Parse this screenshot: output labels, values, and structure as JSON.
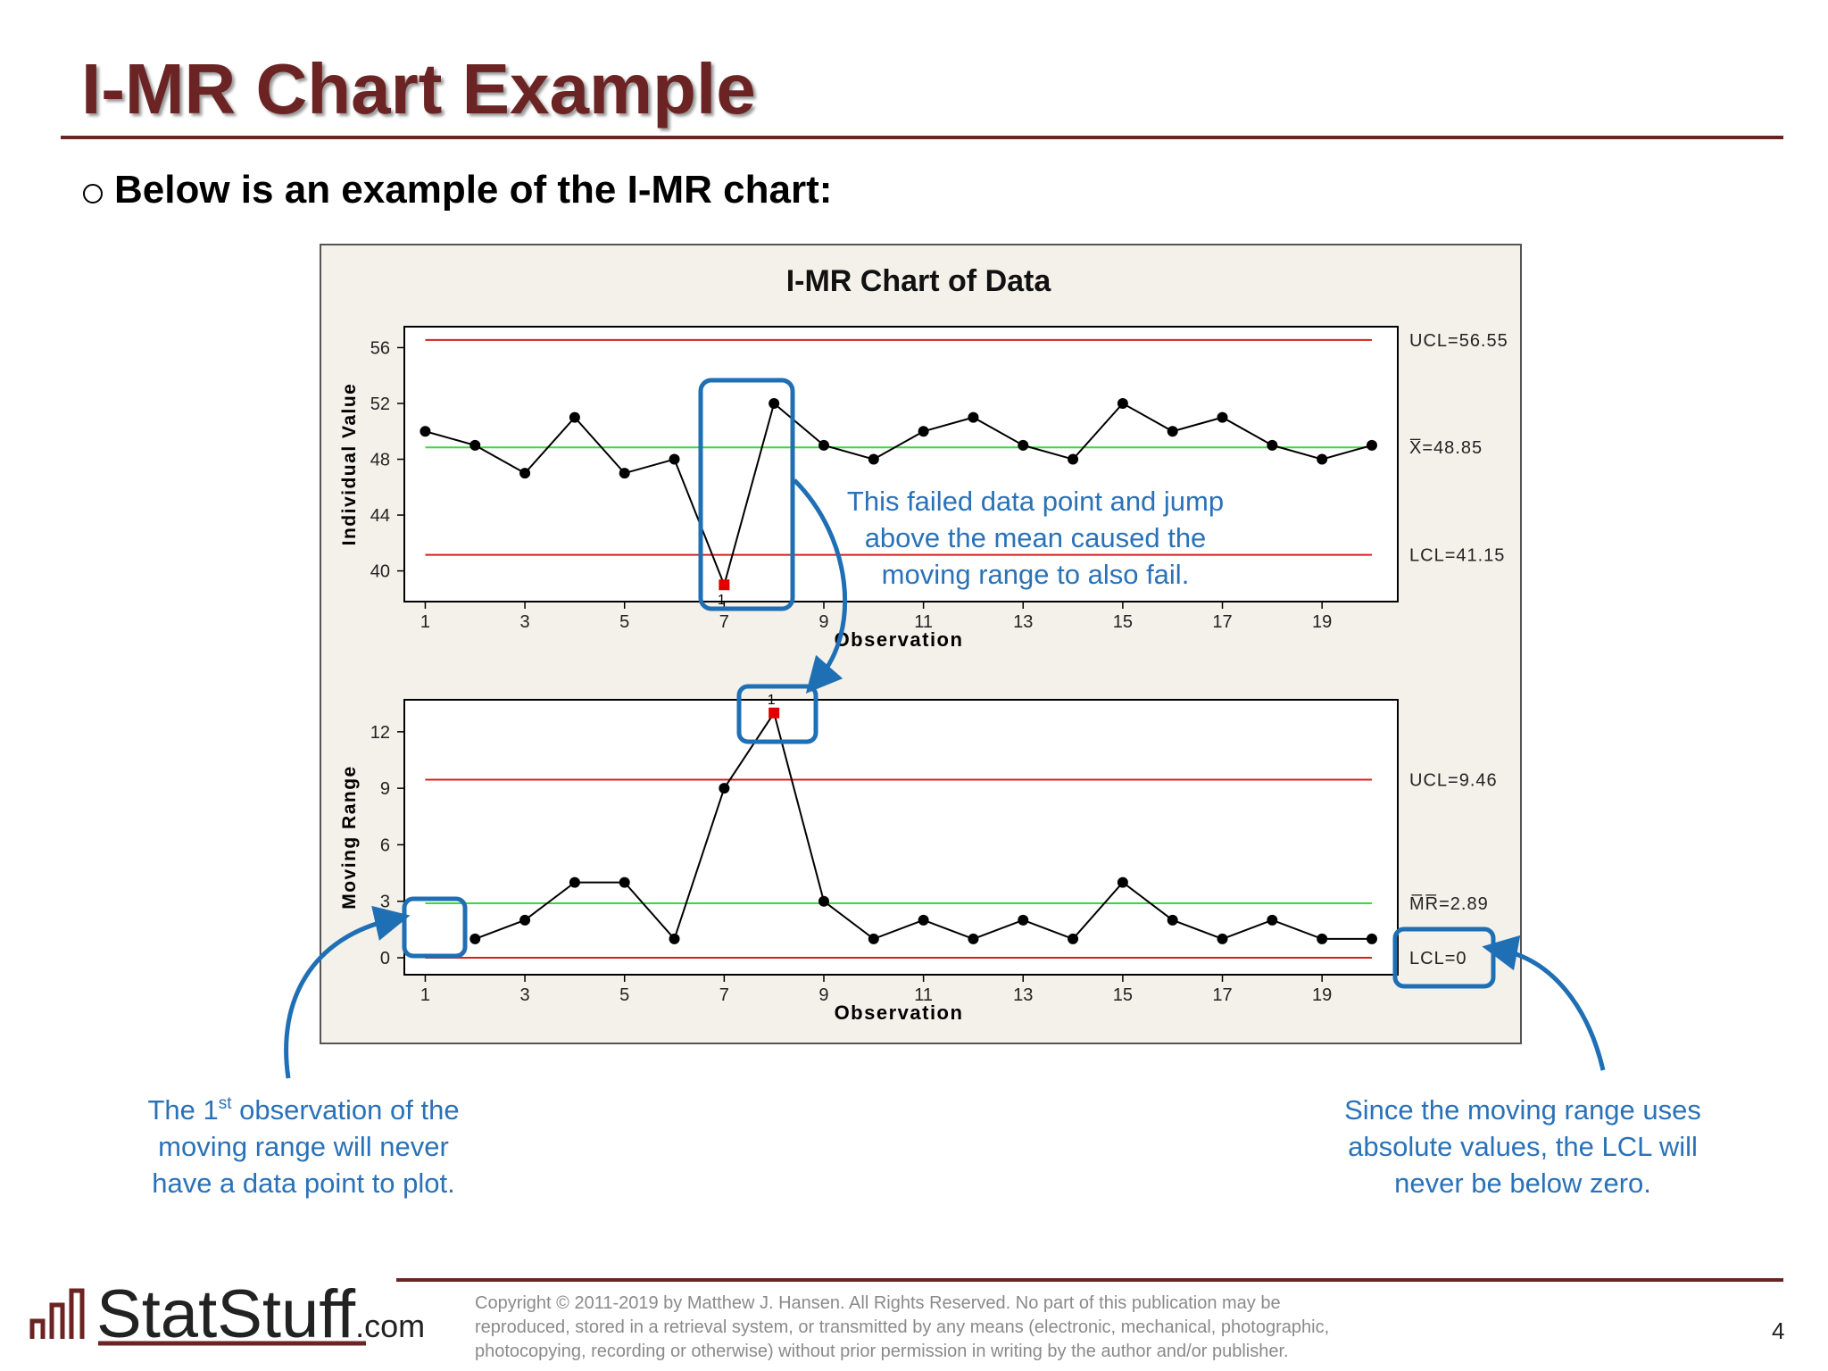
{
  "header": {
    "title": "I-MR Chart Example",
    "bullet": "Below is an example of the I-MR chart:"
  },
  "panel_title": "I-MR Chart of Data",
  "chart_data": [
    {
      "type": "line",
      "ylabel": "Individual Value",
      "xlabel": "Observation",
      "x": [
        1,
        2,
        3,
        4,
        5,
        6,
        7,
        8,
        9,
        10,
        11,
        12,
        13,
        14,
        15,
        16,
        17,
        18,
        19,
        20
      ],
      "values": [
        50,
        49,
        47,
        51,
        47,
        48,
        39,
        52,
        49,
        48,
        50,
        51,
        49,
        48,
        52,
        50,
        51,
        49,
        48,
        49
      ],
      "color": "#000000",
      "flag_color": "#e00000",
      "out_of_control": [
        7
      ],
      "flag_label": "1",
      "xlim": [
        0.58,
        20.52
      ],
      "xticks": [
        1,
        3,
        5,
        7,
        9,
        11,
        13,
        15,
        17,
        19
      ],
      "ylim": [
        37.8,
        57.5
      ],
      "yticks": [
        40,
        44,
        48,
        52,
        56
      ],
      "lines": [
        {
          "value": 56.55,
          "label": "UCL=56.55",
          "color": "#d42020"
        },
        {
          "value": 48.85,
          "label": "X̅=48.85",
          "color": "#33dd33"
        },
        {
          "value": 41.15,
          "label": "LCL=41.15",
          "color": "#d42020"
        }
      ]
    },
    {
      "type": "line",
      "ylabel": "Moving Range",
      "xlabel": "Observation",
      "x": [
        1,
        2,
        3,
        4,
        5,
        6,
        7,
        8,
        9,
        10,
        11,
        12,
        13,
        14,
        15,
        16,
        17,
        18,
        19,
        20
      ],
      "values": [
        null,
        1,
        2,
        4,
        4,
        1,
        9,
        13,
        3,
        1,
        2,
        1,
        2,
        1,
        4,
        2,
        1,
        2,
        1,
        1
      ],
      "color": "#000000",
      "flag_color": "#e00000",
      "out_of_control": [
        8
      ],
      "flag_label": "1",
      "xlim": [
        0.58,
        20.52
      ],
      "xticks": [
        1,
        3,
        5,
        7,
        9,
        11,
        13,
        15,
        17,
        19
      ],
      "ylim": [
        -0.9,
        13.7
      ],
      "yticks": [
        0,
        3,
        6,
        9,
        12
      ],
      "lines": [
        {
          "value": 9.46,
          "label": "UCL=9.46",
          "color": "#d42020"
        },
        {
          "value": 2.89,
          "label": "M̅R̅=2.89",
          "color": "#33dd33"
        },
        {
          "value": 0,
          "label": "LCL=0",
          "color": "#d42020"
        }
      ]
    }
  ],
  "annotations": {
    "middle": [
      "This failed data point and jump",
      "above the mean caused the",
      "moving range to also fail."
    ],
    "left": {
      "first": [
        "The 1",
        "st",
        " observation of the"
      ],
      "rest": [
        "moving range will never",
        "have a data point to plot."
      ]
    },
    "right": [
      "Since the moving range uses",
      "absolute values, the LCL will",
      "never be below zero."
    ]
  },
  "footer": {
    "logo": [
      "StatStuff",
      ".com"
    ],
    "copyright": [
      "Copyright © 2011-2019 by Matthew  J. Hansen.  All Rights Reserved.  No part of this publication may be",
      "reproduced, stored in a retrieval system, or transmitted by any means  (electronic, mechanical, photographic,",
      "photocopying, recording or otherwise) without prior permission in writing by the author and/or publisher."
    ],
    "page": "4"
  }
}
